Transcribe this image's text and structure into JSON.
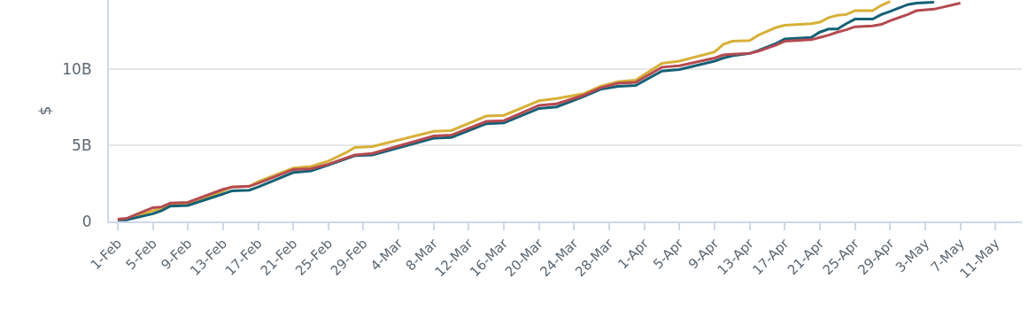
{
  "chart_data": {
    "type": "line",
    "ylabel": "$",
    "xlim": [
      "--01-31",
      "--05-14"
    ],
    "ylim": [
      0,
      14.5
    ],
    "xticks": [
      {
        "value": "--02-01",
        "label": "1-Feb"
      },
      {
        "value": "--02-05",
        "label": "5-Feb"
      },
      {
        "value": "--02-09",
        "label": "9-Feb"
      },
      {
        "value": "--02-13",
        "label": "13-Feb"
      },
      {
        "value": "--02-17",
        "label": "17-Feb"
      },
      {
        "value": "--02-21",
        "label": "21-Feb"
      },
      {
        "value": "--02-25",
        "label": "25-Feb"
      },
      {
        "value": "--02-29",
        "label": "29-Feb"
      },
      {
        "value": "--03-04",
        "label": "4-Mar"
      },
      {
        "value": "--03-08",
        "label": "8-Mar"
      },
      {
        "value": "--03-12",
        "label": "12-Mar"
      },
      {
        "value": "--03-16",
        "label": "16-Mar"
      },
      {
        "value": "--03-20",
        "label": "20-Mar"
      },
      {
        "value": "--03-24",
        "label": "24-Mar"
      },
      {
        "value": "--03-28",
        "label": "28-Mar"
      },
      {
        "value": "--04-01",
        "label": "1-Apr"
      },
      {
        "value": "--04-05",
        "label": "5-Apr"
      },
      {
        "value": "--04-09",
        "label": "9-Apr"
      },
      {
        "value": "--04-13",
        "label": "13-Apr"
      },
      {
        "value": "--04-17",
        "label": "17-Apr"
      },
      {
        "value": "--04-21",
        "label": "21-Apr"
      },
      {
        "value": "--04-25",
        "label": "25-Apr"
      },
      {
        "value": "--04-29",
        "label": "29-Apr"
      },
      {
        "value": "--05-03",
        "label": "3-May"
      },
      {
        "value": "--05-07",
        "label": "7-May"
      },
      {
        "value": "--05-11",
        "label": "11-May"
      }
    ],
    "yticks": [
      0,
      {
        "value": 5,
        "label": "5B"
      },
      {
        "value": 10,
        "label": "10B"
      }
    ],
    "grid": "y",
    "marker": "none",
    "line_style": "solid",
    "x": [
      "--02-01",
      "--02-02",
      "--02-05",
      "--02-06",
      "--02-07",
      "--02-09",
      "--02-13",
      "--02-14",
      "--02-16",
      "--02-17",
      "--02-21",
      "--02-23",
      "--02-25",
      "--02-27",
      "--02-28",
      "--03-01",
      "--03-08",
      "--03-10",
      "--03-14",
      "--03-16",
      "--03-20",
      "--03-22",
      "--03-25",
      "--03-27",
      "--03-29",
      "--03-31",
      "--04-03",
      "--04-05",
      "--04-09",
      "--04-10",
      "--04-11",
      "--04-13",
      "--04-14",
      "--04-16",
      "--04-17",
      "--04-20",
      "--04-21",
      "--04-22",
      "--04-23",
      "--04-24",
      "--04-25",
      "--04-27",
      "--04-28",
      "--04-29",
      "--05-01",
      "--05-02",
      "--05-04",
      "--05-07"
    ],
    "series": [
      {
        "color": "#d6b039",
        "values": [
          0.1,
          0.15,
          0.7,
          0.85,
          1.1,
          1.1,
          2.0,
          2.25,
          2.3,
          2.6,
          3.5,
          3.6,
          3.95,
          4.5,
          4.85,
          4.9,
          5.9,
          5.95,
          6.9,
          6.95,
          7.9,
          8.05,
          8.35,
          8.85,
          9.15,
          9.25,
          10.35,
          10.5,
          11.1,
          11.6,
          11.8,
          11.85,
          12.2,
          12.7,
          12.85,
          12.95,
          13.05,
          13.35,
          13.5,
          13.55,
          13.8,
          13.8,
          14.15,
          14.4,
          null,
          null,
          null,
          null
        ]
      },
      {
        "color": "#146075",
        "values": [
          0.1,
          0.1,
          0.5,
          0.7,
          1.0,
          1.05,
          1.8,
          2.0,
          2.05,
          2.25,
          3.2,
          3.3,
          3.7,
          4.1,
          4.3,
          4.35,
          5.45,
          5.5,
          6.4,
          6.45,
          7.4,
          7.5,
          8.15,
          8.65,
          8.85,
          8.9,
          9.85,
          9.95,
          10.5,
          10.7,
          10.85,
          11.0,
          11.2,
          11.65,
          11.95,
          12.05,
          12.4,
          12.6,
          12.6,
          12.95,
          13.25,
          13.25,
          13.55,
          13.75,
          14.2,
          14.3,
          14.35,
          null
        ]
      },
      {
        "color": "#b54a50",
        "values": [
          0.15,
          0.2,
          0.9,
          0.95,
          1.2,
          1.25,
          2.1,
          2.25,
          2.3,
          2.5,
          3.4,
          3.45,
          3.75,
          4.15,
          4.35,
          4.45,
          5.6,
          5.65,
          6.55,
          6.6,
          7.6,
          7.7,
          8.25,
          8.75,
          9.05,
          9.1,
          10.1,
          10.2,
          10.7,
          10.9,
          10.95,
          11.0,
          11.15,
          11.55,
          11.8,
          11.9,
          12.05,
          12.2,
          12.4,
          12.55,
          12.75,
          12.8,
          12.9,
          13.15,
          13.55,
          13.8,
          13.9,
          14.3
        ]
      }
    ]
  }
}
